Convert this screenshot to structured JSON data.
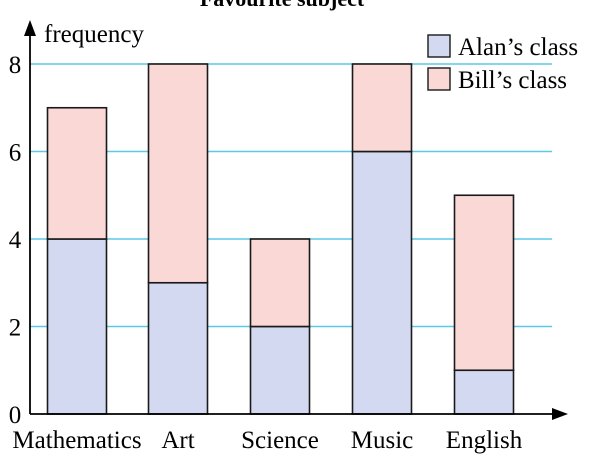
{
  "chart_data": {
    "type": "bar",
    "stacked": true,
    "title": "Favourite subject",
    "xlabel": "",
    "ylabel": "frequency",
    "categories": [
      "Mathematics",
      "Art",
      "Science",
      "Music",
      "English"
    ],
    "series": [
      {
        "name": "Alan’s class",
        "values": [
          4,
          3,
          2,
          6,
          1
        ],
        "color": "#d3d9f0"
      },
      {
        "name": "Bill’s class",
        "values": [
          3,
          5,
          2,
          2,
          4
        ],
        "color": "#fad8d6"
      }
    ],
    "ylim": [
      0,
      8
    ],
    "yticks": [
      0,
      2,
      4,
      6,
      8
    ],
    "grid": true,
    "grid_color": "#5bc8e8",
    "legend_position": "top-right"
  }
}
